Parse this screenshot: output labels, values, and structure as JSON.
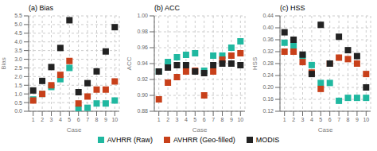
{
  "chart_data": [
    {
      "type": "scatter",
      "title": "(a) Bias",
      "x_label": "Case",
      "y_label": "Bias",
      "x": [
        1,
        2,
        3,
        4,
        5,
        6,
        7,
        8,
        9,
        10
      ],
      "series": [
        {
          "name": "AVHRR (Raw)",
          "color": "#20b8a0",
          "marker": "square",
          "values": [
            0.68,
            1.0,
            1.4,
            1.85,
            2.5,
            0.15,
            0.2,
            0.45,
            0.45,
            0.62
          ]
        },
        {
          "name": "AVHRR (Geo-filled)",
          "color": "#c8401a",
          "marker": "square",
          "values": [
            0.62,
            1.0,
            1.5,
            2.1,
            2.9,
            0.45,
            0.85,
            1.25,
            1.25,
            1.72
          ]
        },
        {
          "name": "MODIS",
          "color": "#222222",
          "marker": "square",
          "values": [
            1.2,
            1.75,
            2.55,
            3.65,
            5.25,
            1.1,
            1.62,
            2.3,
            3.45,
            4.85
          ]
        }
      ],
      "xlim": [
        0.5,
        10.5
      ],
      "xticks": [
        1,
        2,
        3,
        4,
        5,
        6,
        7,
        8,
        9,
        10
      ],
      "ylim": [
        0,
        5.5
      ],
      "yticks": [
        {
          "value": 0,
          "label": "0.0"
        },
        0.5,
        {
          "value": 1,
          "label": "1.0"
        },
        1.5,
        {
          "value": 2,
          "label": "2.0"
        },
        2.5,
        {
          "value": 3,
          "label": "3.0"
        },
        3.5,
        {
          "value": 4,
          "label": "4.0"
        },
        4.5,
        {
          "value": 5,
          "label": "5.0"
        },
        5.5
      ],
      "grid": true,
      "legend": "bottom"
    },
    {
      "type": "scatter",
      "title": "(b) ACC",
      "x_label": "Case",
      "y_label": "ACC",
      "x": [
        1,
        2,
        3,
        4,
        5,
        6,
        7,
        8,
        9,
        10
      ],
      "series": [
        {
          "name": "AVHRR (Raw)",
          "color": "#20b8a0",
          "marker": "square",
          "values": [
            0.93,
            0.942,
            0.948,
            0.951,
            0.953,
            0.931,
            0.95,
            0.95,
            0.96,
            0.968
          ]
        },
        {
          "name": "AVHRR (Geo-filled)",
          "color": "#c8401a",
          "marker": "square",
          "values": [
            0.895,
            0.916,
            0.923,
            0.93,
            0.931,
            0.9,
            0.93,
            0.945,
            0.95,
            0.953
          ]
        },
        {
          "name": "MODIS",
          "color": "#222222",
          "marker": "square",
          "values": [
            0.93,
            0.935,
            0.938,
            0.938,
            0.93,
            0.928,
            0.938,
            0.94,
            0.94,
            0.938
          ]
        }
      ],
      "xlim": [
        0.5,
        10.5
      ],
      "xticks": [
        1,
        2,
        3,
        4,
        5,
        6,
        7,
        8,
        9,
        10
      ],
      "ylim": [
        0.88,
        1.0
      ],
      "yticks": [
        0.88,
        {
          "value": 0.9,
          "label": "0.90"
        },
        0.92,
        0.94,
        0.96,
        0.98,
        {
          "value": 1,
          "label": "1.00"
        }
      ],
      "grid": true,
      "legend": "bottom"
    },
    {
      "type": "scatter",
      "title": "(c) HSS",
      "x_label": "Case",
      "y_label": "HSS",
      "x": [
        1,
        2,
        3,
        4,
        5,
        6,
        7,
        8,
        9,
        10
      ],
      "series": [
        {
          "name": "AVHRR (Raw)",
          "color": "#20b8a0",
          "marker": "square",
          "values": [
            0.35,
            0.34,
            0.305,
            0.275,
            0.215,
            0.215,
            0.155,
            0.165,
            0.165,
            0.165
          ]
        },
        {
          "name": "AVHRR (Geo-filled)",
          "color": "#c8401a",
          "marker": "square",
          "values": [
            0.32,
            0.32,
            0.285,
            0.25,
            0.195,
            0.28,
            0.3,
            0.295,
            0.28,
            0.245
          ]
        },
        {
          "name": "MODIS",
          "color": "#222222",
          "marker": "square",
          "values": [
            0.385,
            0.36,
            0.31,
            0.245,
            0.41,
            0.28,
            0.37,
            0.325,
            0.305,
            0.2
          ]
        }
      ],
      "xlim": [
        0.5,
        10.5
      ],
      "xticks": [
        1,
        2,
        3,
        4,
        5,
        6,
        7,
        8,
        9,
        10
      ],
      "ylim": [
        0.12,
        0.44
      ],
      "yticks": [
        0.12,
        0.16,
        {
          "value": 0.2,
          "label": "0.20"
        },
        0.24,
        0.28,
        0.32,
        0.36,
        {
          "value": 0.4,
          "label": "0.40"
        },
        0.44
      ],
      "grid": true,
      "legend": "bottom"
    }
  ]
}
